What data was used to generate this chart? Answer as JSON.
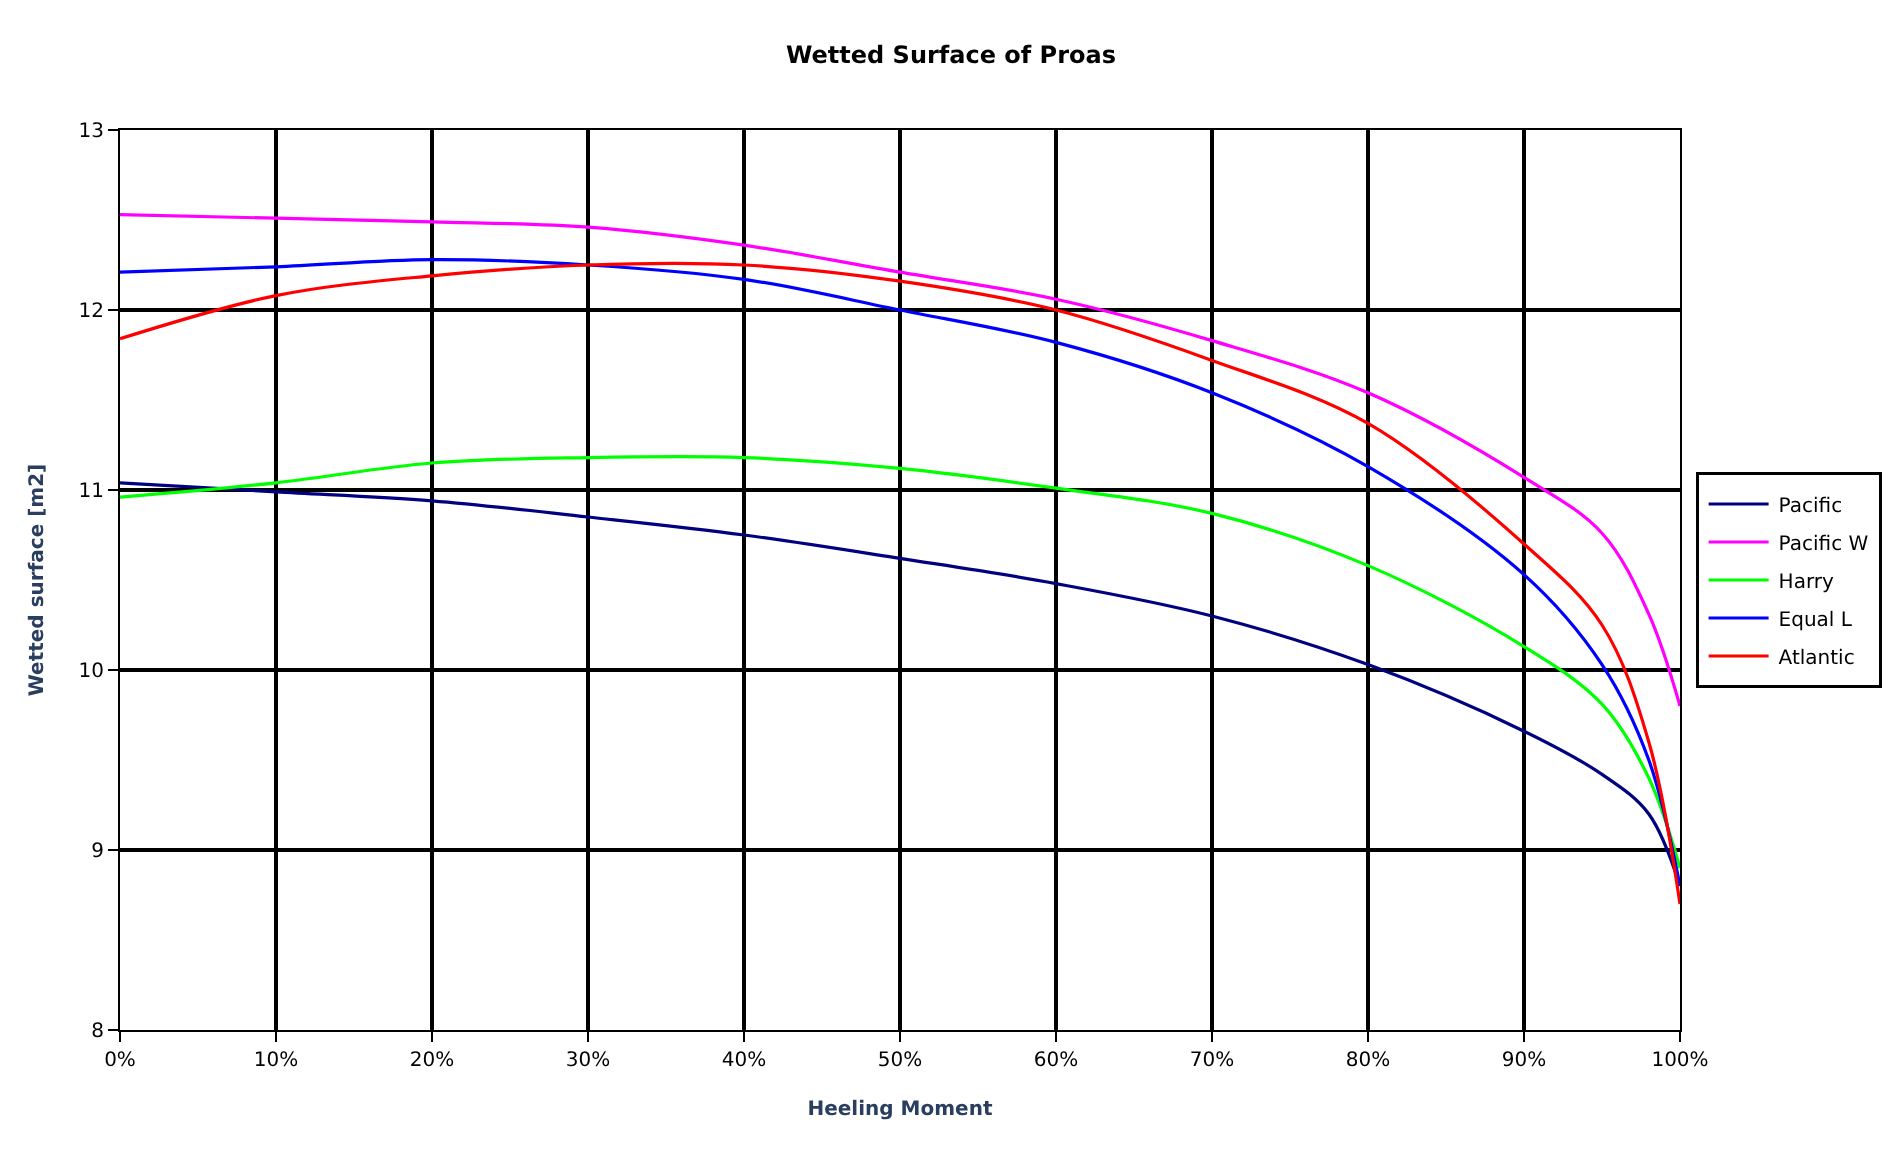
{
  "chart_data": {
    "type": "line",
    "title": "Wetted Surface of Proas",
    "xlabel": "Heeling Moment",
    "ylabel": "Wetted surface [m2]",
    "x": [
      0,
      10,
      20,
      30,
      40,
      50,
      60,
      70,
      80,
      90,
      95,
      98,
      100
    ],
    "series": [
      {
        "name": "Pacific",
        "color": "#000080",
        "values": [
          11.04,
          10.99,
          10.94,
          10.85,
          10.75,
          10.62,
          10.48,
          10.3,
          10.03,
          9.66,
          9.42,
          9.2,
          8.8
        ]
      },
      {
        "name": "Pacific W",
        "color": "#ff00ff",
        "values": [
          12.53,
          12.51,
          12.49,
          12.46,
          12.36,
          12.21,
          12.06,
          11.83,
          11.54,
          11.07,
          10.76,
          10.31,
          9.8
        ]
      },
      {
        "name": "Harry",
        "color": "#00ff00",
        "values": [
          10.96,
          11.04,
          11.15,
          11.18,
          11.18,
          11.12,
          11.01,
          10.87,
          10.58,
          10.13,
          9.81,
          9.4,
          8.9
        ]
      },
      {
        "name": "Equal L",
        "color": "#0000ff",
        "values": [
          12.21,
          12.24,
          12.28,
          12.25,
          12.17,
          12.0,
          11.82,
          11.54,
          11.13,
          10.53,
          10.03,
          9.5,
          8.8
        ]
      },
      {
        "name": "Atlantic",
        "color": "#ff0000",
        "values": [
          11.84,
          12.08,
          12.19,
          12.25,
          12.25,
          12.16,
          12.0,
          11.72,
          11.37,
          10.7,
          10.25,
          9.6,
          8.7
        ]
      }
    ],
    "xlim": [
      0,
      100
    ],
    "xticks": [
      {
        "value": 0,
        "label": "0%"
      },
      {
        "value": 10,
        "label": "10%"
      },
      {
        "value": 20,
        "label": "20%"
      },
      {
        "value": 30,
        "label": "30%"
      },
      {
        "value": 40,
        "label": "40%"
      },
      {
        "value": 50,
        "label": "50%"
      },
      {
        "value": 60,
        "label": "60%"
      },
      {
        "value": 70,
        "label": "70%"
      },
      {
        "value": 80,
        "label": "80%"
      },
      {
        "value": 90,
        "label": "90%"
      },
      {
        "value": 100,
        "label": "100%"
      }
    ],
    "ylim": [
      8,
      13
    ],
    "yticks": [
      8,
      9,
      10,
      11,
      12,
      13
    ],
    "grid": true,
    "legend": "right",
    "marker": "none",
    "line_style": "solid"
  }
}
